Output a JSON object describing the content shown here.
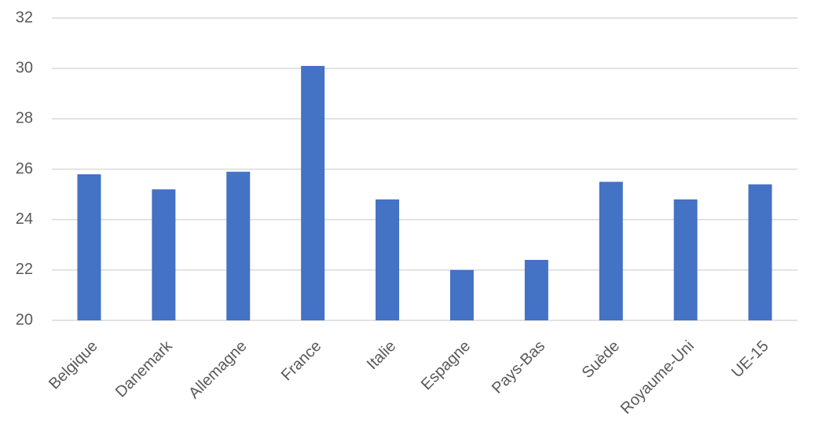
{
  "chart_data": {
    "type": "bar",
    "categories": [
      "Belgique",
      "Danemark",
      "Allemagne",
      "France",
      "Italie",
      "Espagne",
      "Pays-Bas",
      "Suède",
      "Royaume-Uni",
      "UE-15"
    ],
    "values": [
      25.8,
      25.2,
      25.9,
      30.1,
      24.8,
      22.0,
      22.4,
      25.5,
      24.8,
      25.4
    ],
    "color": "#4472c4",
    "ylim": [
      20,
      32
    ],
    "yticks": [
      20,
      22,
      24,
      26,
      28,
      30,
      32
    ],
    "grid": true
  }
}
